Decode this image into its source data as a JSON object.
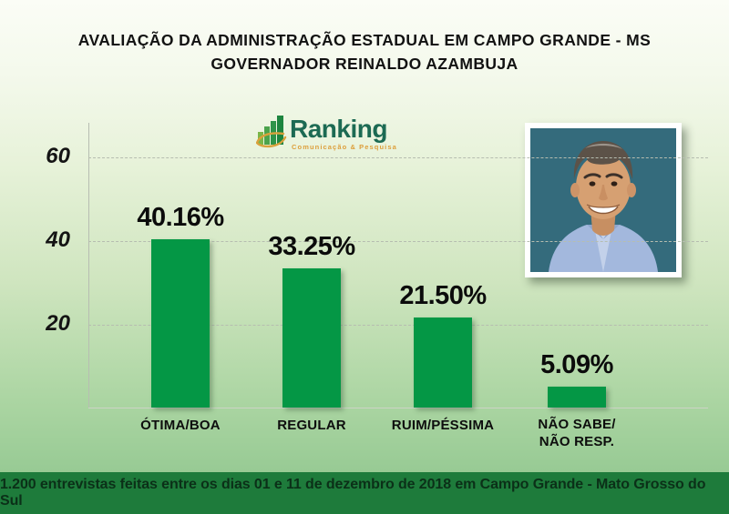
{
  "title": {
    "line1": "AVALIAÇÃO DA ADMINISTRAÇÃO ESTADUAL EM CAMPO GRANDE - MS",
    "line2": "GOVERNADOR REINALDO AZAMBUJA"
  },
  "logo": {
    "name": "Ranking",
    "tagline": "Comunicação & Pesquisa"
  },
  "chart_data": {
    "type": "bar",
    "title": "Avaliação da administração estadual",
    "categories": [
      "ÓTIMA/BOA",
      "REGULAR",
      "RUIM/PÉSSIMA",
      "NÃO SABE/\nNÃO RESP."
    ],
    "values": [
      40.16,
      33.25,
      21.5,
      5.09
    ],
    "value_labels": [
      "40.16%",
      "33.25%",
      "21.50%",
      "5.09%"
    ],
    "y_ticks": [
      20,
      40,
      60
    ],
    "ylim": [
      0,
      68
    ],
    "xlabel": "",
    "ylabel": "",
    "grid": "dashed-horizontal",
    "legend": "none",
    "bar_color": "#049745"
  },
  "footer": {
    "text": "1.200 entrevistas feitas entre os dias 01 e 11 de dezembro de 2018 em Campo Grande - Mato Grosso do Sul"
  },
  "colors": {
    "bar": "#049745",
    "footer_band": "#1e7b3b",
    "logo_name": "#1c6a53",
    "logo_tagline": "#dd9f3b",
    "background_bottom": "#8cc48c",
    "photo_background": "#346b7c"
  }
}
